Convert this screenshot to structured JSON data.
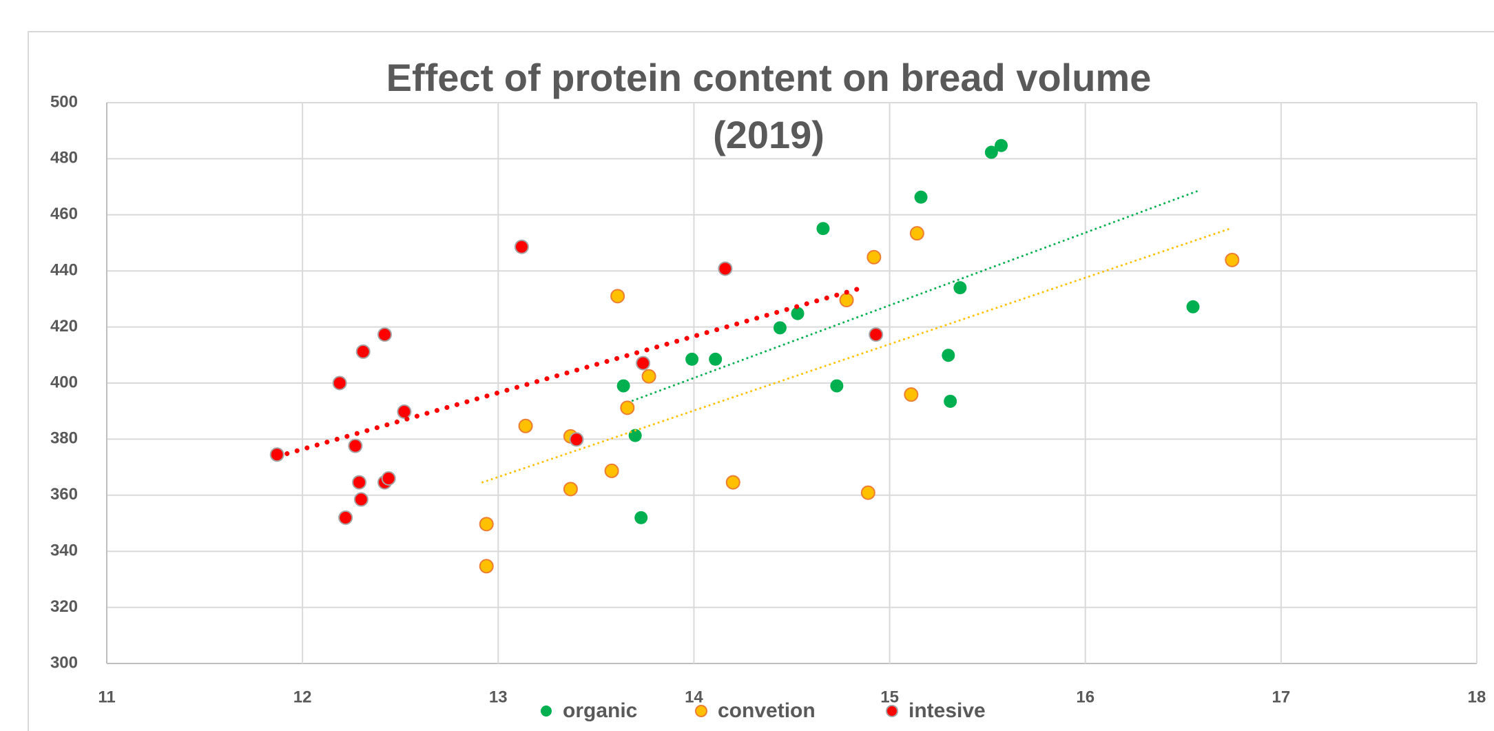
{
  "chart_data": {
    "type": "scatter",
    "title_lines": [
      "Effect  of protein content on  bread volume",
      "(2019)"
    ],
    "xlim": [
      11,
      18
    ],
    "xticks": [
      11,
      12,
      13,
      14,
      15,
      16,
      17,
      18
    ],
    "ylim": [
      300,
      500
    ],
    "yticks": [
      300,
      320,
      340,
      360,
      380,
      400,
      420,
      440,
      460,
      480,
      500
    ],
    "grid": true,
    "legend": "bottom",
    "series": [
      {
        "name": "organic",
        "color": "#00b050",
        "stroke": "none",
        "x": [
          15.52,
          15.57,
          15.16,
          14.66,
          15.36,
          16.55,
          14.53,
          14.44,
          13.99,
          14.11,
          15.3,
          13.64,
          14.73,
          15.31,
          13.7,
          13.73
        ],
        "values": [
          482.3,
          484.7,
          466.3,
          455.1,
          434.0,
          427.2,
          424.8,
          419.7,
          408.5,
          408.5,
          409.9,
          399.0,
          399.0,
          393.5,
          381.3,
          352.0
        ],
        "trendline": {
          "x": [
            13.64,
            16.57
          ],
          "values": [
            392.5,
            468.4
          ]
        }
      },
      {
        "name": "convetion",
        "color": "#ffc000",
        "stroke": "#ed7d31",
        "x": [
          15.14,
          14.92,
          16.75,
          13.61,
          14.78,
          13.77,
          13.66,
          15.11,
          13.14,
          13.37,
          13.58,
          13.37,
          14.2,
          14.89,
          12.94,
          12.94
        ],
        "values": [
          453.4,
          444.9,
          443.9,
          431.0,
          429.6,
          402.4,
          391.2,
          395.9,
          384.7,
          381.0,
          368.7,
          362.2,
          364.6,
          360.9,
          349.7,
          334.7
        ],
        "trendline": {
          "x": [
            12.92,
            16.74
          ],
          "values": [
            364.6,
            455.1
          ]
        }
      },
      {
        "name": "intesive",
        "color": "#ff0000",
        "stroke": "#a5a5a5",
        "x": [
          13.12,
          14.16,
          12.42,
          12.31,
          14.93,
          13.74,
          12.19,
          12.52,
          13.4,
          12.27,
          11.87,
          12.29,
          12.42,
          12.44,
          12.3,
          12.22
        ],
        "values": [
          448.6,
          440.8,
          417.3,
          411.2,
          417.3,
          407.1,
          400.0,
          389.8,
          379.9,
          377.6,
          374.5,
          364.6,
          364.6,
          366.0,
          358.5,
          352.0
        ],
        "trendline": {
          "x": [
            11.87,
            14.88
          ],
          "values": [
            373.8,
            434.4
          ]
        }
      }
    ]
  }
}
